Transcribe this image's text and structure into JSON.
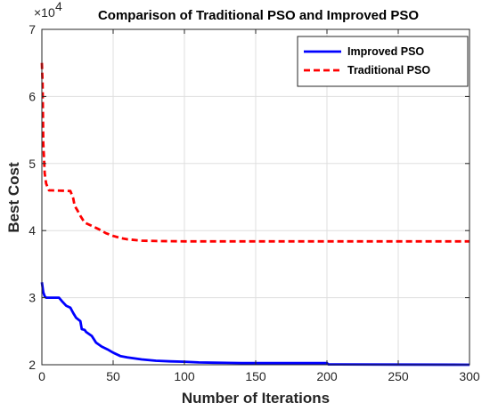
{
  "chart_data": {
    "type": "line",
    "title": "Comparison of Traditional PSO and Improved PSO",
    "xlabel": "Number of Iterations",
    "ylabel": "Best Cost",
    "xlim": [
      0,
      300
    ],
    "ylim": [
      20000,
      70000
    ],
    "x_ticks": [
      "0",
      "50",
      "100",
      "150",
      "200",
      "250",
      "300"
    ],
    "y_ticks": [
      "2",
      "3",
      "4",
      "5",
      "6",
      "7"
    ],
    "y_multiplier": "×10",
    "y_exponent": "4",
    "grid": true,
    "legend_position": "top-right",
    "series": [
      {
        "name": "Improved PSO",
        "color": "#0000ff",
        "style": "solid",
        "x": [
          0,
          1,
          2,
          3,
          12,
          14,
          17,
          20,
          22,
          24,
          27,
          28,
          30,
          31,
          35,
          38,
          42,
          46,
          50,
          55,
          60,
          70,
          80,
          90,
          100,
          110,
          120,
          140,
          160,
          180,
          200,
          201,
          250,
          300
        ],
        "y": [
          32300,
          30800,
          30200,
          30000,
          30000,
          29500,
          28800,
          28500,
          27700,
          27000,
          26500,
          25300,
          25200,
          24900,
          24300,
          23300,
          22700,
          22300,
          21800,
          21300,
          21100,
          20800,
          20600,
          20500,
          20450,
          20350,
          20300,
          20250,
          20250,
          20250,
          20250,
          20050,
          20020,
          20000
        ]
      },
      {
        "name": "Traditional PSO",
        "color": "#ff0000",
        "style": "dashed",
        "x": [
          0,
          0.5,
          1,
          2,
          3,
          5,
          7,
          20,
          22,
          23,
          25,
          27,
          30,
          35,
          40,
          45,
          50,
          55,
          60,
          70,
          80,
          100,
          150,
          200,
          250,
          300
        ],
        "y": [
          65000,
          62000,
          53000,
          48500,
          47000,
          46000,
          46000,
          45900,
          44800,
          43700,
          43000,
          42200,
          41200,
          40700,
          40200,
          39600,
          39200,
          38900,
          38700,
          38500,
          38450,
          38400,
          38400,
          38400,
          38400,
          38400
        ]
      }
    ]
  }
}
